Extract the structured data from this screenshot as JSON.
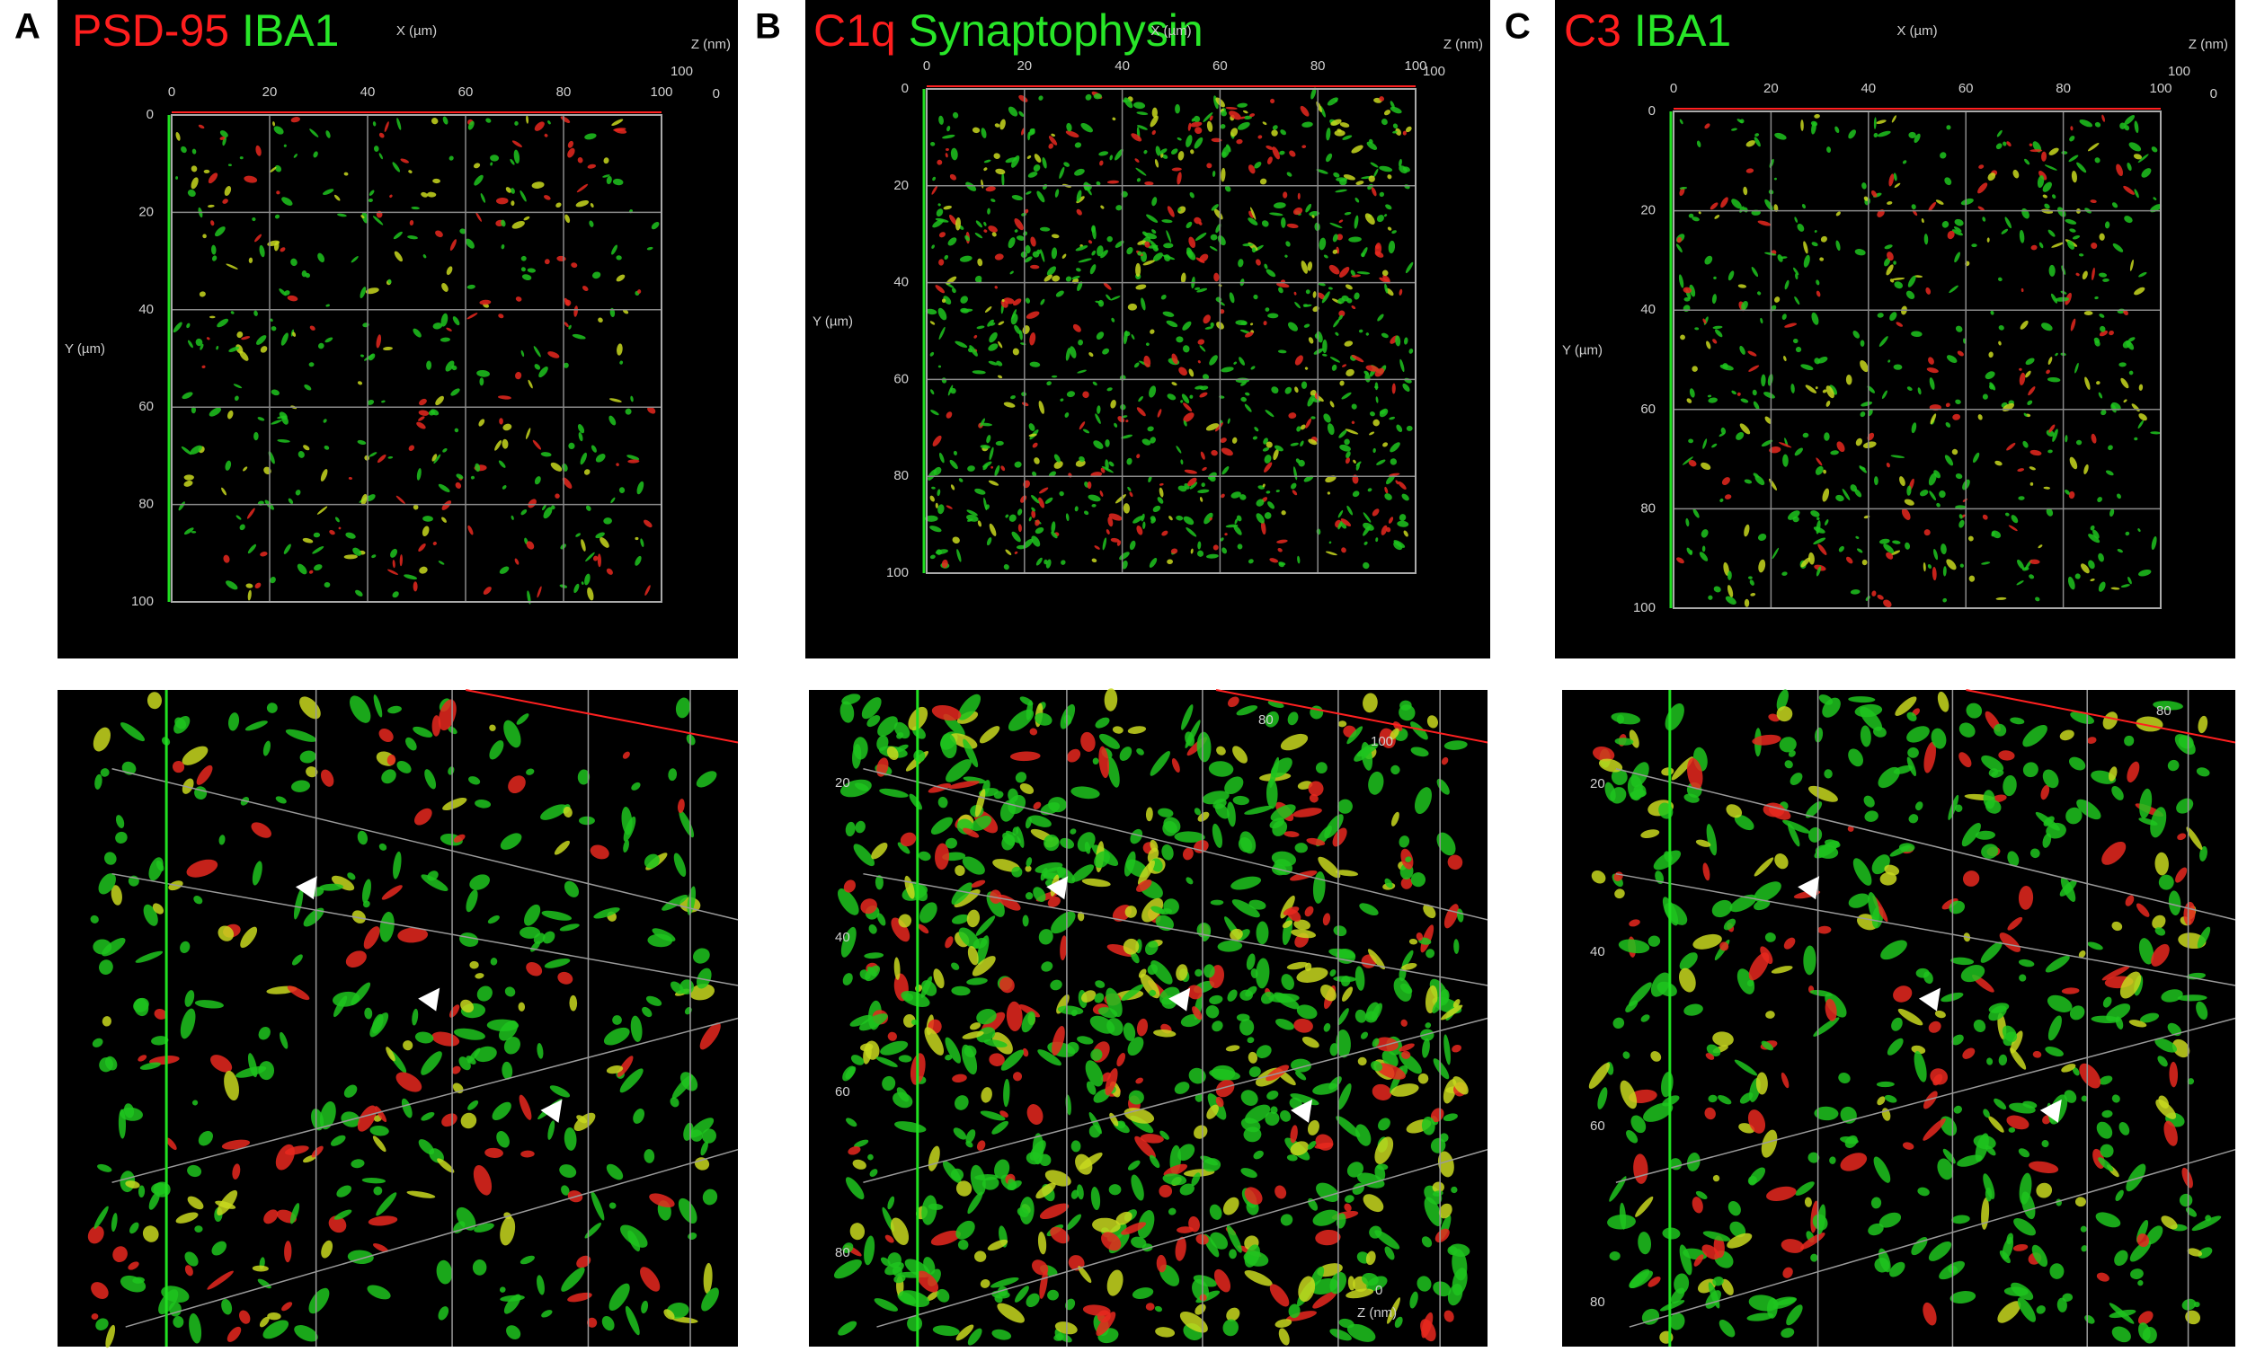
{
  "panels": [
    {
      "letter": "A",
      "stain_red": "PSD-95",
      "stain_green": "IBA1",
      "top": {
        "x_axis_label": "X (µm)",
        "y_axis_label": "Y (µm)",
        "z_axis_label": "Z (nm)",
        "x_ticks": [
          "0",
          "20",
          "40",
          "60",
          "80",
          "100"
        ],
        "y_ticks": [
          "0",
          "20",
          "40",
          "60",
          "80",
          "100"
        ],
        "z_ticks": [
          "100",
          "0"
        ]
      }
    },
    {
      "letter": "B",
      "stain_red": "C1q",
      "stain_green": "Synaptophysin",
      "top": {
        "x_axis_label": "X (µm)",
        "y_axis_label": "Y (µm)",
        "z_axis_label": "Z (nm)",
        "x_ticks": [
          "0",
          "20",
          "40",
          "60",
          "80",
          "100"
        ],
        "y_ticks": [
          "0",
          "20",
          "40",
          "60",
          "80",
          "100"
        ],
        "z_ticks": [
          "100"
        ]
      },
      "bottom": {
        "y_ticks": [
          "20",
          "40",
          "60",
          "80"
        ],
        "x_ticks": [
          "80",
          "100"
        ],
        "z_axis_label": "Z (nm)",
        "z_ticks": [
          "0"
        ]
      }
    },
    {
      "letter": "C",
      "stain_red": "C3",
      "stain_green": "IBA1",
      "top": {
        "x_axis_label": "X (µm)",
        "y_axis_label": "Y (µm)",
        "z_axis_label": "Z (nm)",
        "x_ticks": [
          "0",
          "20",
          "40",
          "60",
          "80",
          "100"
        ],
        "y_ticks": [
          "0",
          "20",
          "40",
          "60",
          "80",
          "100"
        ],
        "z_ticks": [
          "100",
          "0"
        ]
      },
      "bottom": {
        "y_ticks": [
          "20",
          "40",
          "60",
          "80"
        ],
        "x_ticks": [
          "80"
        ]
      }
    }
  ]
}
